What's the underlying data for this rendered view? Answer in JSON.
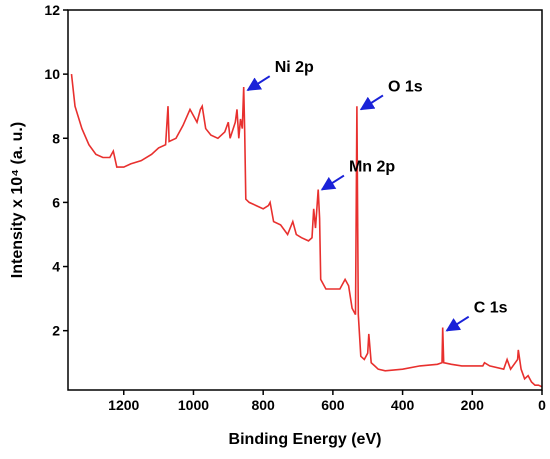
{
  "chart_data": {
    "type": "line",
    "x_label": "Binding Energy (eV)",
    "y_label": "Intensity x 10⁴ (a. u.)",
    "xlim": [
      1360,
      0
    ],
    "ylim": [
      0.15,
      12
    ],
    "xticks": [
      1200,
      1000,
      800,
      600,
      400,
      200,
      0
    ],
    "yticks": [
      2,
      4,
      6,
      8,
      10,
      12
    ],
    "x": [
      1350,
      1340,
      1320,
      1300,
      1280,
      1260,
      1240,
      1230,
      1220,
      1200,
      1180,
      1150,
      1120,
      1100,
      1080,
      1073,
      1070,
      1050,
      1030,
      1010,
      1000,
      990,
      980,
      975,
      965,
      950,
      930,
      910,
      900,
      895,
      880,
      875,
      870,
      865,
      860,
      856,
      853,
      850,
      840,
      820,
      800,
      785,
      780,
      770,
      750,
      730,
      715,
      705,
      690,
      670,
      660,
      655,
      650,
      642,
      638,
      635,
      620,
      600,
      580,
      565,
      555,
      545,
      535,
      531,
      527,
      520,
      510,
      500,
      497,
      490,
      480,
      470,
      450,
      400,
      350,
      300,
      287,
      285,
      282,
      260,
      230,
      200,
      170,
      165,
      150,
      110,
      100,
      90,
      70,
      68,
      60,
      50,
      40,
      30,
      20,
      10,
      0
    ],
    "series": [
      {
        "color": "#e8302e",
        "values": [
          10.0,
          9.0,
          8.3,
          7.8,
          7.5,
          7.4,
          7.4,
          7.6,
          7.1,
          7.1,
          7.2,
          7.3,
          7.5,
          7.7,
          7.8,
          9.0,
          7.9,
          8.0,
          8.4,
          8.9,
          8.7,
          8.5,
          8.9,
          9.0,
          8.3,
          8.1,
          8.0,
          8.2,
          8.5,
          8.0,
          8.5,
          8.9,
          8.0,
          8.6,
          8.3,
          9.6,
          8.2,
          6.1,
          6.0,
          5.9,
          5.8,
          5.9,
          6.0,
          5.4,
          5.3,
          5.0,
          5.4,
          5.0,
          4.9,
          4.8,
          4.9,
          5.8,
          5.2,
          6.4,
          5.5,
          3.6,
          3.3,
          3.3,
          3.3,
          3.6,
          3.4,
          2.7,
          2.5,
          9.0,
          2.5,
          1.2,
          1.1,
          1.3,
          1.9,
          1.0,
          0.9,
          0.8,
          0.75,
          0.8,
          0.9,
          0.95,
          1.0,
          2.1,
          1.0,
          0.95,
          0.9,
          0.9,
          0.9,
          1.0,
          0.9,
          0.8,
          1.1,
          0.8,
          1.1,
          1.4,
          0.8,
          0.5,
          0.6,
          0.4,
          0.3,
          0.3,
          0.25
        ]
      }
    ],
    "annotations": [
      {
        "text": "Ni 2p",
        "x": 853,
        "y": 9.5
      },
      {
        "text": "O 1s",
        "x": 528,
        "y": 8.9
      },
      {
        "text": "Mn 2p",
        "x": 640,
        "y": 6.4
      },
      {
        "text": "C 1s",
        "x": 282,
        "y": 2.0
      }
    ]
  }
}
